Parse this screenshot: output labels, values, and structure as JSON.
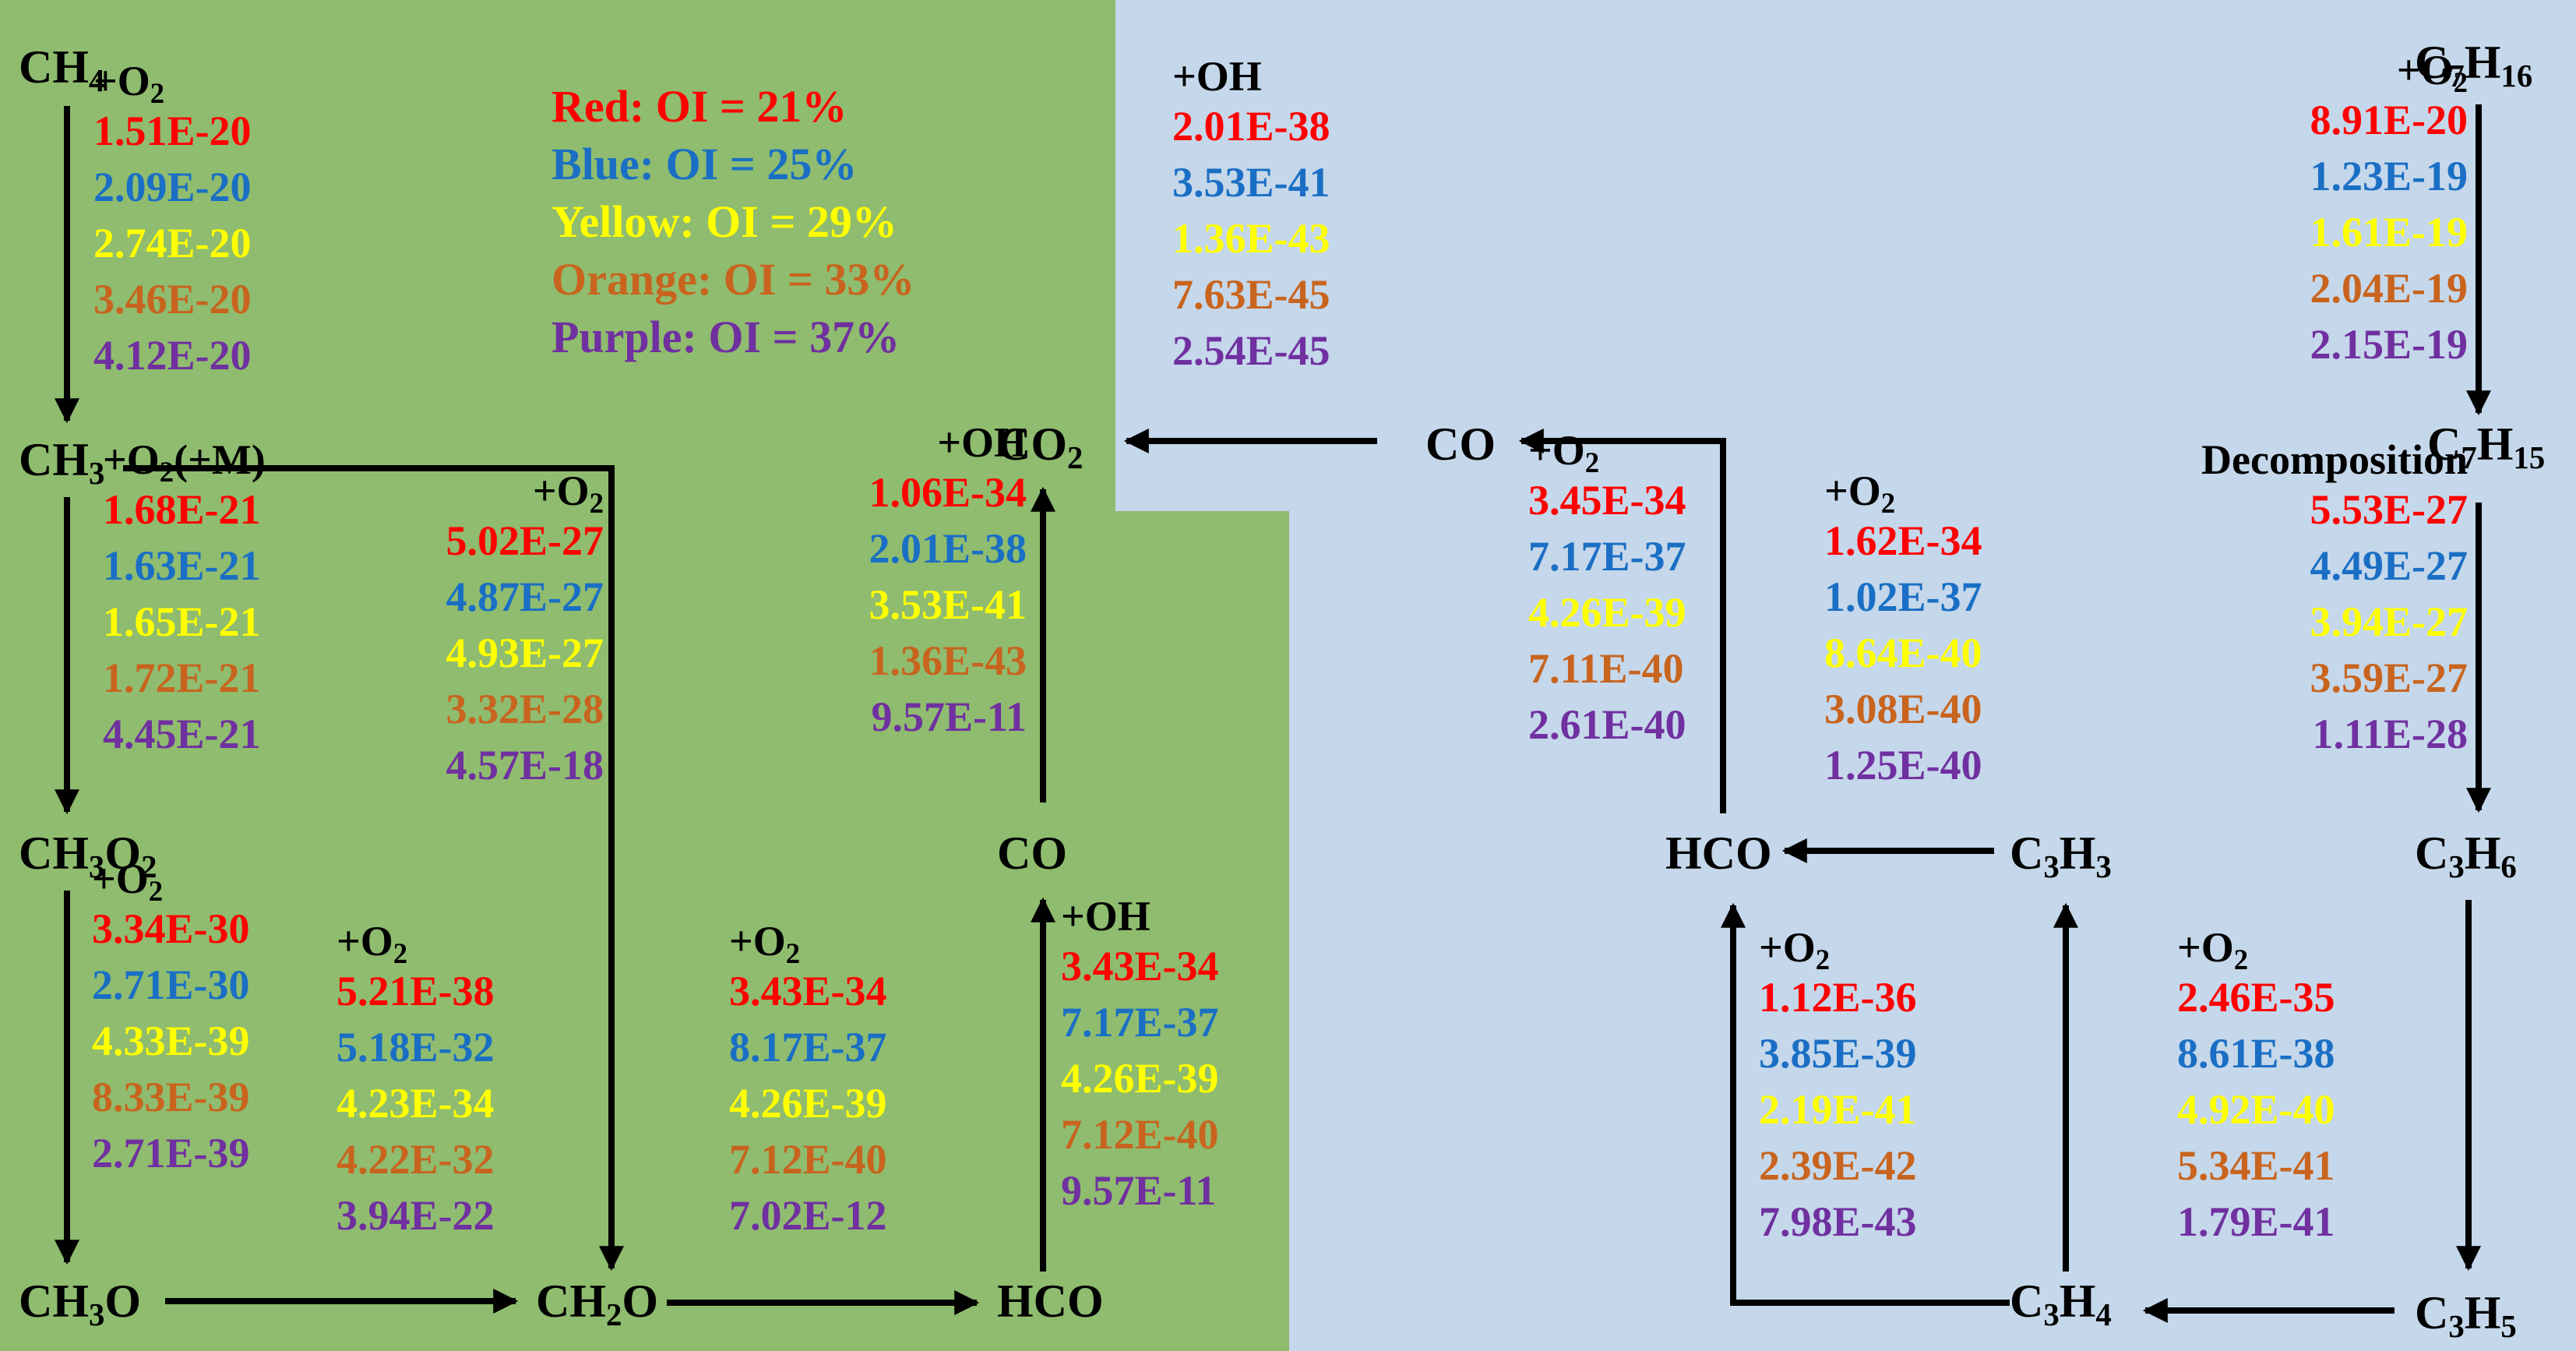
{
  "colors": {
    "green_bg": "#8fbc6f",
    "blue_bg": "#c5d7ea",
    "red": "#ff0000",
    "blue": "#1a6fc4",
    "yellow": "#ffff00",
    "orange": "#c8641e",
    "purple": "#7030a0",
    "black": "#000000"
  },
  "legend": [
    {
      "text": "Red: OI = 21%",
      "color": "red"
    },
    {
      "text": "Blue: OI = 25%",
      "color": "blue"
    },
    {
      "text": "Yellow: OI = 29%",
      "color": "yellow"
    },
    {
      "text": "Orange: OI = 33%",
      "color": "orange"
    },
    {
      "text": "Purple: OI = 37%",
      "color": "purple"
    }
  ],
  "species": {
    "ch4": "CH4",
    "ch3": "CH3",
    "ch3o2": "CH3O2",
    "ch3o": "CH3O",
    "ch2o": "CH2O",
    "hco_left": "HCO",
    "co_left": "CO",
    "co2": "CO2",
    "co_right": "CO",
    "hco_right": "HCO",
    "c3h3": "C3H3",
    "c3h4": "C3H4",
    "c3h5": "C3H5",
    "c3h6": "C3H6",
    "c7h15": "C7H15",
    "c7h16": "C7H16"
  },
  "reactions": {
    "ch4_to_ch3": {
      "reactant": "+O2",
      "rates": [
        "1.51E-20",
        "2.09E-20",
        "2.74E-20",
        "3.46E-20",
        "4.12E-20"
      ]
    },
    "ch3_to_ch3o2": {
      "reactant": "+O2(+M)",
      "rates": [
        "1.68E-21",
        "1.63E-21",
        "1.65E-21",
        "1.72E-21",
        "4.45E-21"
      ]
    },
    "ch3_to_ch2o": {
      "reactant": "+O2",
      "rates": [
        "5.02E-27",
        "4.87E-27",
        "4.93E-27",
        "3.32E-28",
        "4.57E-18"
      ]
    },
    "ch3o2_to_ch3o": {
      "reactant": "+O2",
      "rates": [
        "3.34E-30",
        "2.71E-30",
        "4.33E-39",
        "8.33E-39",
        "2.71E-39"
      ]
    },
    "ch3o_to_ch2o": {
      "reactant": "+O2",
      "rates": [
        "5.21E-38",
        "5.18E-32",
        "4.23E-34",
        "4.22E-32",
        "3.94E-22"
      ]
    },
    "ch2o_to_hco": {
      "reactant": "+O2",
      "rates": [
        "3.43E-34",
        "8.17E-37",
        "4.26E-39",
        "7.12E-40",
        "7.02E-12"
      ]
    },
    "hco_to_co": {
      "reactant": "+OH",
      "rates": [
        "3.43E-34",
        "7.17E-37",
        "4.26E-39",
        "7.12E-40",
        "9.57E-11"
      ]
    },
    "co_to_co2": {
      "reactant": "+OH",
      "rates": [
        "1.06E-34",
        "2.01E-38",
        "3.53E-41",
        "1.36E-43",
        "9.57E-11"
      ]
    },
    "co_right_to_co2": {
      "reactant": "+OH",
      "rates": [
        "2.01E-38",
        "3.53E-41",
        "1.36E-43",
        "7.63E-45",
        "2.54E-45"
      ]
    },
    "hco_right_to_co": {
      "reactant": "+O2",
      "rates": [
        "3.45E-34",
        "7.17E-37",
        "4.26E-39",
        "7.11E-40",
        "2.61E-40"
      ]
    },
    "c3h3_to_hco": {
      "reactant": "+O2",
      "rates": [
        "1.62E-34",
        "1.02E-37",
        "8.64E-40",
        "3.08E-40",
        "1.25E-40"
      ]
    },
    "c3h4_to_hco": {
      "reactant": "+O2",
      "rates": [
        "1.12E-36",
        "3.85E-39",
        "2.19E-41",
        "2.39E-42",
        "7.98E-43"
      ]
    },
    "c3h5_to_c3h4": {
      "reactant": "+O2",
      "rates": [
        "2.46E-35",
        "8.61E-38",
        "4.92E-40",
        "5.34E-41",
        "1.79E-41"
      ]
    },
    "c7h15_to_c3h6": {
      "reactant": "Decomposition",
      "rates": [
        "5.53E-27",
        "4.49E-27",
        "3.94E-27",
        "3.59E-27",
        "1.11E-28"
      ]
    },
    "c7h16_to_c7h15": {
      "reactant": "+O2",
      "rates": [
        "8.91E-20",
        "1.23E-19",
        "1.61E-19",
        "2.04E-19",
        "2.15E-19"
      ]
    }
  }
}
